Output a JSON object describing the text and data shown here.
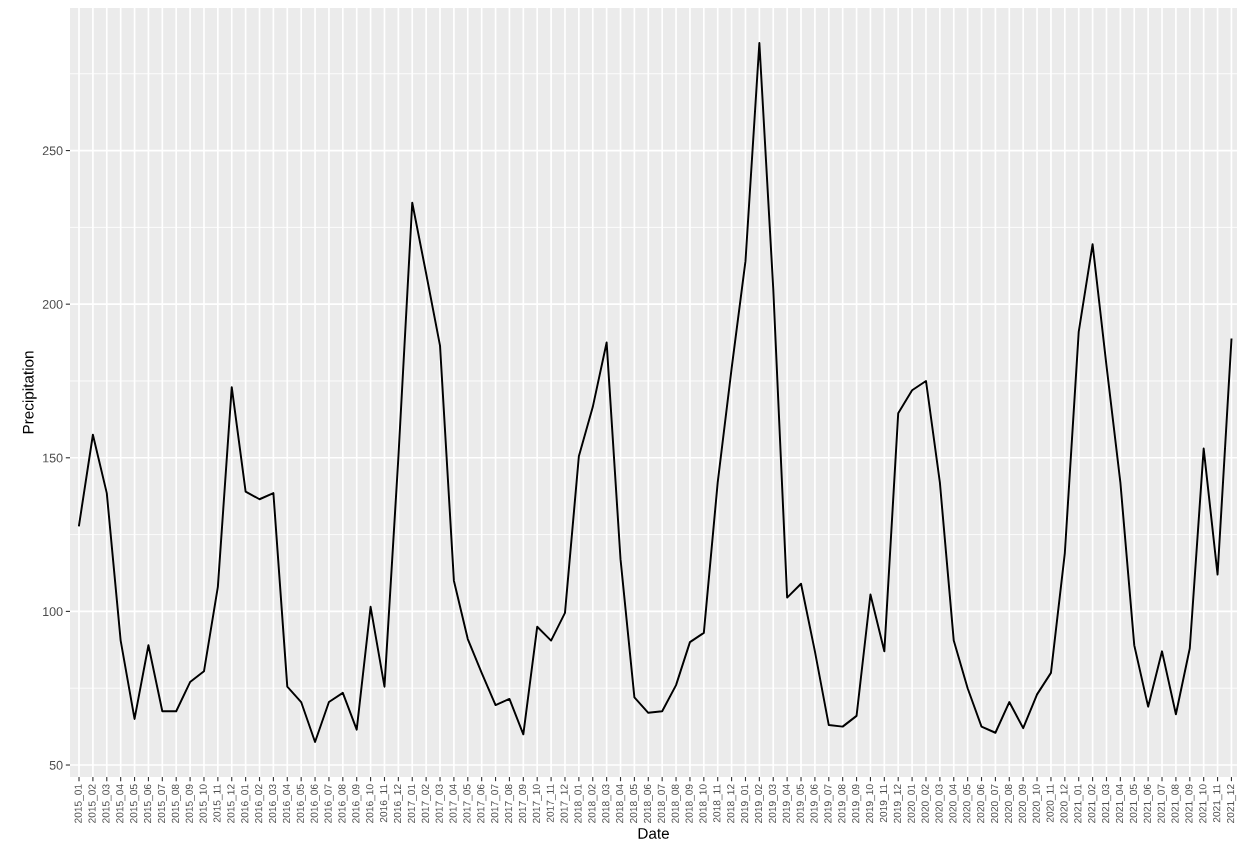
{
  "chart_data": {
    "type": "line",
    "xlabel": "Date",
    "ylabel": "Precipitation",
    "categories": [
      "2015_01",
      "2015_02",
      "2015_03",
      "2015_04",
      "2015_05",
      "2015_06",
      "2015_07",
      "2015_08",
      "2015_09",
      "2015_10",
      "2015_11",
      "2015_12",
      "2016_01",
      "2016_02",
      "2016_03",
      "2016_04",
      "2016_05",
      "2016_06",
      "2016_07",
      "2016_08",
      "2016_09",
      "2016_10",
      "2016_11",
      "2016_12",
      "2017_01",
      "2017_02",
      "2017_03",
      "2017_04",
      "2017_05",
      "2017_06",
      "2017_07",
      "2017_08",
      "2017_09",
      "2017_10",
      "2017_11",
      "2017_12",
      "2018_01",
      "2018_02",
      "2018_03",
      "2018_04",
      "2018_05",
      "2018_06",
      "2018_07",
      "2018_08",
      "2018_09",
      "2018_10",
      "2018_11",
      "2018_12",
      "2019_01",
      "2019_02",
      "2019_03",
      "2019_04",
      "2019_05",
      "2019_06",
      "2019_07",
      "2019_08",
      "2019_09",
      "2019_10",
      "2019_11",
      "2019_12",
      "2020_01",
      "2020_02",
      "2020_03",
      "2020_04",
      "2020_05",
      "2020_06",
      "2020_07",
      "2020_08",
      "2020_09",
      "2020_10",
      "2020_11",
      "2020_12",
      "2021_01",
      "2021_02",
      "2021_03",
      "2021_04",
      "2021_05",
      "2021_06",
      "2021_07",
      "2021_08",
      "2021_09",
      "2021_10",
      "2021_11",
      "2021_12"
    ],
    "series": [
      {
        "color": "#000000",
        "values": [
          128,
          157.5,
          138.5,
          90.5,
          65,
          89,
          67.5,
          67.5,
          77,
          80.5,
          108,
          173,
          139,
          136.5,
          138.5,
          75.5,
          70.5,
          57.5,
          70.5,
          73.5,
          61.5,
          101.5,
          75.5,
          150,
          233,
          210,
          186.5,
          110,
          91,
          80,
          69.5,
          71.5,
          60,
          95,
          90.5,
          99.5,
          150.5,
          166.5,
          187.5,
          117,
          72,
          67,
          67.5,
          76,
          90,
          93,
          142,
          179,
          214,
          285,
          205,
          104.5,
          109,
          87,
          63,
          62.5,
          66,
          105.5,
          87,
          164.5,
          172,
          175,
          142,
          90.5,
          75,
          62.5,
          60.5,
          70.5,
          62,
          73,
          80,
          119,
          191,
          219.5,
          180,
          142,
          89,
          69,
          87,
          66.5,
          88,
          153,
          112,
          188.5
        ]
      }
    ],
    "ylim": [
      46.1,
      296.4
    ],
    "yticks": [
      50,
      100,
      150,
      200,
      250
    ],
    "grid": true,
    "line_style": "solid",
    "marker": "none"
  }
}
